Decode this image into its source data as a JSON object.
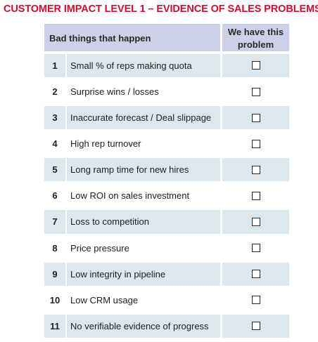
{
  "title": "CUSTOMER IMPACT LEVEL 1 – EVIDENCE OF SALES PROBLEMS",
  "table": {
    "col_problem_header": "Bad things that happen",
    "col_check_header": "We have this problem",
    "rows": [
      {
        "num": "1",
        "text": "Small % of reps making quota",
        "checked": false
      },
      {
        "num": "2",
        "text": "Surprise wins / losses",
        "checked": false
      },
      {
        "num": "3",
        "text": "Inaccurate forecast / Deal slippage",
        "checked": false
      },
      {
        "num": "4",
        "text": "High rep turnover",
        "checked": false
      },
      {
        "num": "5",
        "text": "Long ramp time for new hires",
        "checked": false
      },
      {
        "num": "6",
        "text": "Low ROI on sales investment",
        "checked": false
      },
      {
        "num": "7",
        "text": "Loss to competition",
        "checked": false
      },
      {
        "num": "8",
        "text": "Price pressure",
        "checked": false
      },
      {
        "num": "9",
        "text": "Low integrity in pipeline",
        "checked": false
      },
      {
        "num": "10",
        "text": "Low CRM usage",
        "checked": false
      },
      {
        "num": "11",
        "text": "No verifiable evidence of progress",
        "checked": false
      }
    ]
  },
  "colors": {
    "title": "#c8102e",
    "header_fill": "#cdd1e7",
    "row_fill": "#dde8ee"
  }
}
